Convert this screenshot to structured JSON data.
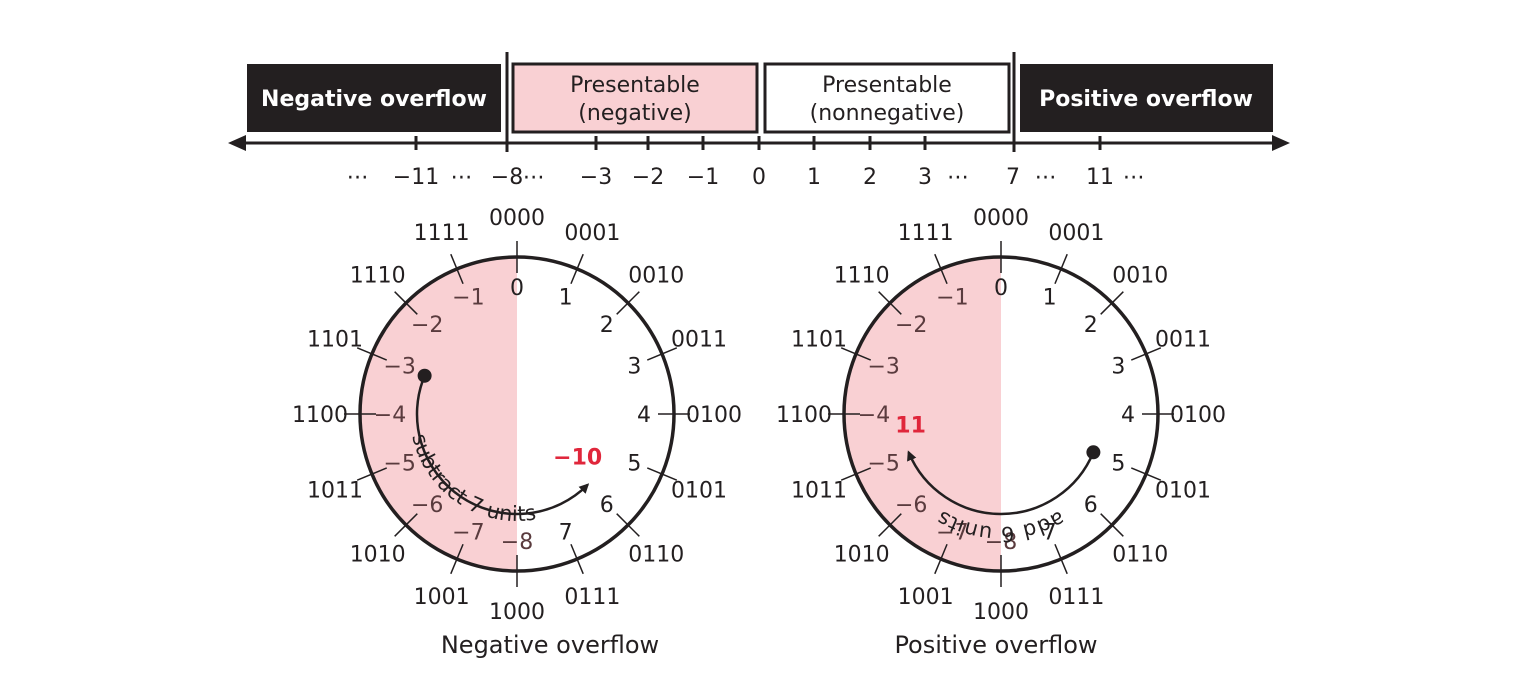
{
  "number_line": {
    "regions": {
      "negative_overflow": "Negative overflow",
      "presentable_negative": [
        "Presentable",
        "(negative)"
      ],
      "presentable_nonnegative": [
        "Presentable",
        "(nonnegative)"
      ],
      "positive_overflow": "Positive overflow"
    },
    "ticks": [
      {
        "label": "⋯",
        "value": -13.5
      },
      {
        "label": "−11",
        "value": -11
      },
      {
        "label": "⋯",
        "value": -9.5
      },
      {
        "label": "−8",
        "value": -8
      },
      {
        "label": "⋯",
        "value": -6.5
      },
      {
        "label": "−3",
        "value": -3
      },
      {
        "label": "−2",
        "value": -2
      },
      {
        "label": "−1",
        "value": -1
      },
      {
        "label": "0",
        "value": 0
      },
      {
        "label": "1",
        "value": 1
      },
      {
        "label": "2",
        "value": 2
      },
      {
        "label": "3",
        "value": 3
      },
      {
        "label": "⋯",
        "value": 4.5
      },
      {
        "label": "7",
        "value": 7
      },
      {
        "label": "⋯",
        "value": 8.5
      },
      {
        "label": "11",
        "value": 11
      },
      {
        "label": "⋯",
        "value": 12.5
      }
    ]
  },
  "wheel": {
    "binaries": [
      "0000",
      "0001",
      "0010",
      "0011",
      "0100",
      "0101",
      "0110",
      "0111",
      "1000",
      "1001",
      "1010",
      "1011",
      "1100",
      "1101",
      "1110",
      "1111"
    ],
    "decimals": [
      "0",
      "1",
      "2",
      "3",
      "4",
      "5",
      "6",
      "7",
      "−8",
      "−7",
      "−6",
      "−5",
      "−4",
      "−3",
      "−2",
      "−1"
    ]
  },
  "diagrams": [
    {
      "caption": "Negative overflow",
      "arc_label": "subtract 7 units",
      "start_value": -3,
      "end_value": 6,
      "result_label": "−10"
    },
    {
      "caption": "Positive overflow",
      "arc_label": "add 6 units",
      "start_value": 5,
      "end_value": -5,
      "result_label": "11"
    }
  ],
  "colors": {
    "dark": "#231f20",
    "pink": "#f9d0d3",
    "highlight": "#e0263b"
  }
}
